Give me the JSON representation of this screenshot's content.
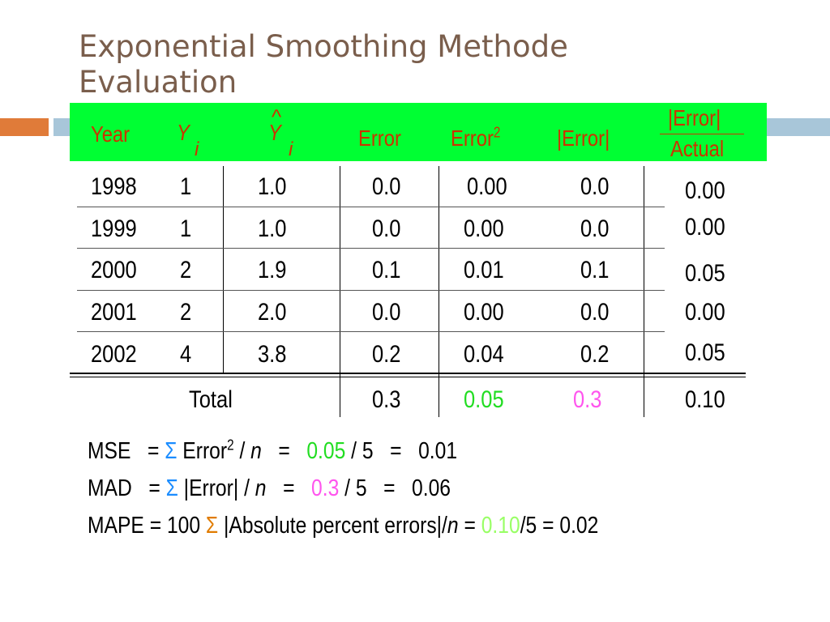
{
  "title_line1": "Exponential Smoothing Methode",
  "title_line2": "Evaluation",
  "headers": {
    "year": "Year",
    "y": "Y",
    "y_sub": "i",
    "yhat_hat": "^",
    "yhat": "Y",
    "yhat_sub": "i",
    "error": "Error",
    "error2": "Error",
    "error2_sup": "2",
    "abs_error": "|Error|",
    "ratio_top": "|Error|",
    "ratio_bottom": "Actual"
  },
  "rows": [
    {
      "year": "1998",
      "y": "1",
      "yhat": "1.0",
      "error": "0.0",
      "error2": "0.00",
      "abs_error": "0.0",
      "ratio": "0.00"
    },
    {
      "year": "1999",
      "y": "1",
      "yhat": "1.0",
      "error": "0.0",
      "error2": "0.00",
      "abs_error": "0.0",
      "ratio": "0.00"
    },
    {
      "year": "2000",
      "y": "2",
      "yhat": "1.9",
      "error": "0.1",
      "error2": "0.01",
      "abs_error": "0.1",
      "ratio": "0.05"
    },
    {
      "year": "2001",
      "y": "2",
      "yhat": "2.0",
      "error": "0.0",
      "error2": "0.00",
      "abs_error": "0.0",
      "ratio": "0.00"
    },
    {
      "year": "2002",
      "y": "4",
      "yhat": "3.8",
      "error": "0.2",
      "error2": "0.04",
      "abs_error": "0.2",
      "ratio": "0.05"
    }
  ],
  "total": {
    "label": "Total",
    "error": "0.3",
    "error2": "0.05",
    "abs_error": "0.3",
    "ratio": "0.10"
  },
  "formulas": {
    "mse_label": "MSE   = ",
    "mse_sigma": "Σ",
    "mse_mid": " Error",
    "mse_sup": "2",
    "mse_slash": " / ",
    "mse_n": "n",
    "mse_eq": "   =   ",
    "mse_value": "0.05",
    "mse_rest": " / 5   =   0.01",
    "mad_label": "MAD   = ",
    "mad_sigma": "Σ",
    "mad_mid": " |Error| / ",
    "mad_n": "n",
    "mad_eq": "   =   ",
    "mad_value": "0.3",
    "mad_rest": " / 5   =   0.06",
    "mape_label": "MAPE = 100 ",
    "mape_sigma": "Σ",
    "mape_mid": " |Absolute percent errors|/",
    "mape_n": "n",
    "mape_eq": " = ",
    "mape_value": "0.10",
    "mape_rest": "/5 = 0.02"
  },
  "colors": {
    "header_bg": "#00ff33",
    "header_text": "#cc3300",
    "title": "#7a5e4c",
    "accent_orange": "#e07b39",
    "accent_blue": "#a8c6d9",
    "sigma_blue": "#1a8cff",
    "green": "#22dd22",
    "pink": "#ff55ee"
  }
}
